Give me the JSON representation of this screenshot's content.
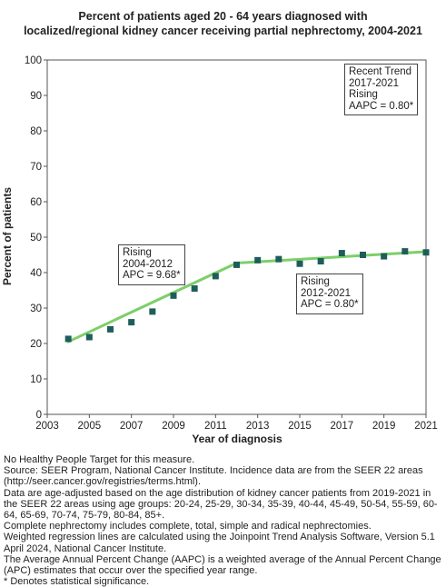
{
  "title_line1": "Percent of patients aged 20 - 64 years diagnosed with",
  "title_line2": "localized/regional kidney cancer receiving partial nephrectomy, 2004-2021",
  "chart_data": {
    "type": "scatter",
    "xlabel": "Year of diagnosis",
    "ylabel": "Percent of patients",
    "xlim": [
      2003,
      2021
    ],
    "ylim": [
      0,
      100
    ],
    "x_ticks": [
      2003,
      2005,
      2007,
      2009,
      2011,
      2013,
      2015,
      2017,
      2019,
      2021
    ],
    "y_ticks": [
      0,
      10,
      20,
      30,
      40,
      50,
      60,
      70,
      80,
      90,
      100
    ],
    "grid": false,
    "series": [
      {
        "type": "scatter",
        "color": "#1e5e5a",
        "x": [
          2004,
          2005,
          2006,
          2007,
          2008,
          2009,
          2010,
          2011,
          2012,
          2013,
          2014,
          2015,
          2016,
          2017,
          2018,
          2019,
          2020,
          2021
        ],
        "y": [
          21.3,
          21.8,
          24.0,
          26.0,
          29.0,
          33.5,
          35.5,
          39.0,
          42.2,
          43.5,
          43.8,
          42.5,
          43.2,
          45.5,
          45.0,
          44.6,
          46.0,
          45.7
        ]
      },
      {
        "type": "line",
        "color": "#7ccf6a",
        "x": [
          2004,
          2012,
          2021
        ],
        "y": [
          20.5,
          42.7,
          45.9
        ]
      }
    ],
    "annotations": [
      {
        "lines": [
          "Rising",
          "2004-2012",
          "APC =  9.68*"
        ]
      },
      {
        "lines": [
          "Rising",
          "2012-2021",
          "APC =  0.80*"
        ]
      },
      {
        "lines": [
          "Recent Trend",
          "2017-2021",
          "Rising",
          "AAPC =  0.80*"
        ]
      }
    ]
  },
  "notes": [
    "No Healthy People Target for this measure.",
    "Source: SEER Program, National Cancer Institute. Incidence data are from the SEER 22 areas (http://seer.cancer.gov/registries/terms.html).",
    "Data are age-adjusted based on the age distribution of kidney cancer patients from 2019-2021 in the SEER 22 areas using age groups: 20-24, 25-29, 30-34, 35-39, 40-44, 45-49, 50-54, 55-59, 60-64, 65-69, 70-74, 75-79, 80-84, 85+.",
    "Complete nephrectomy includes complete, total, simple and radical nephrectomies.",
    "Weighted regression lines are calculated using the Joinpoint Trend Analysis Software, Version 5.1 April 2024, National Cancer Institute.",
    "The Average Annual Percent Change (AAPC) is a weighted average of the Annual Percent Change (APC) estimates that occur over the specified year range.",
    "* Denotes statistical significance."
  ]
}
